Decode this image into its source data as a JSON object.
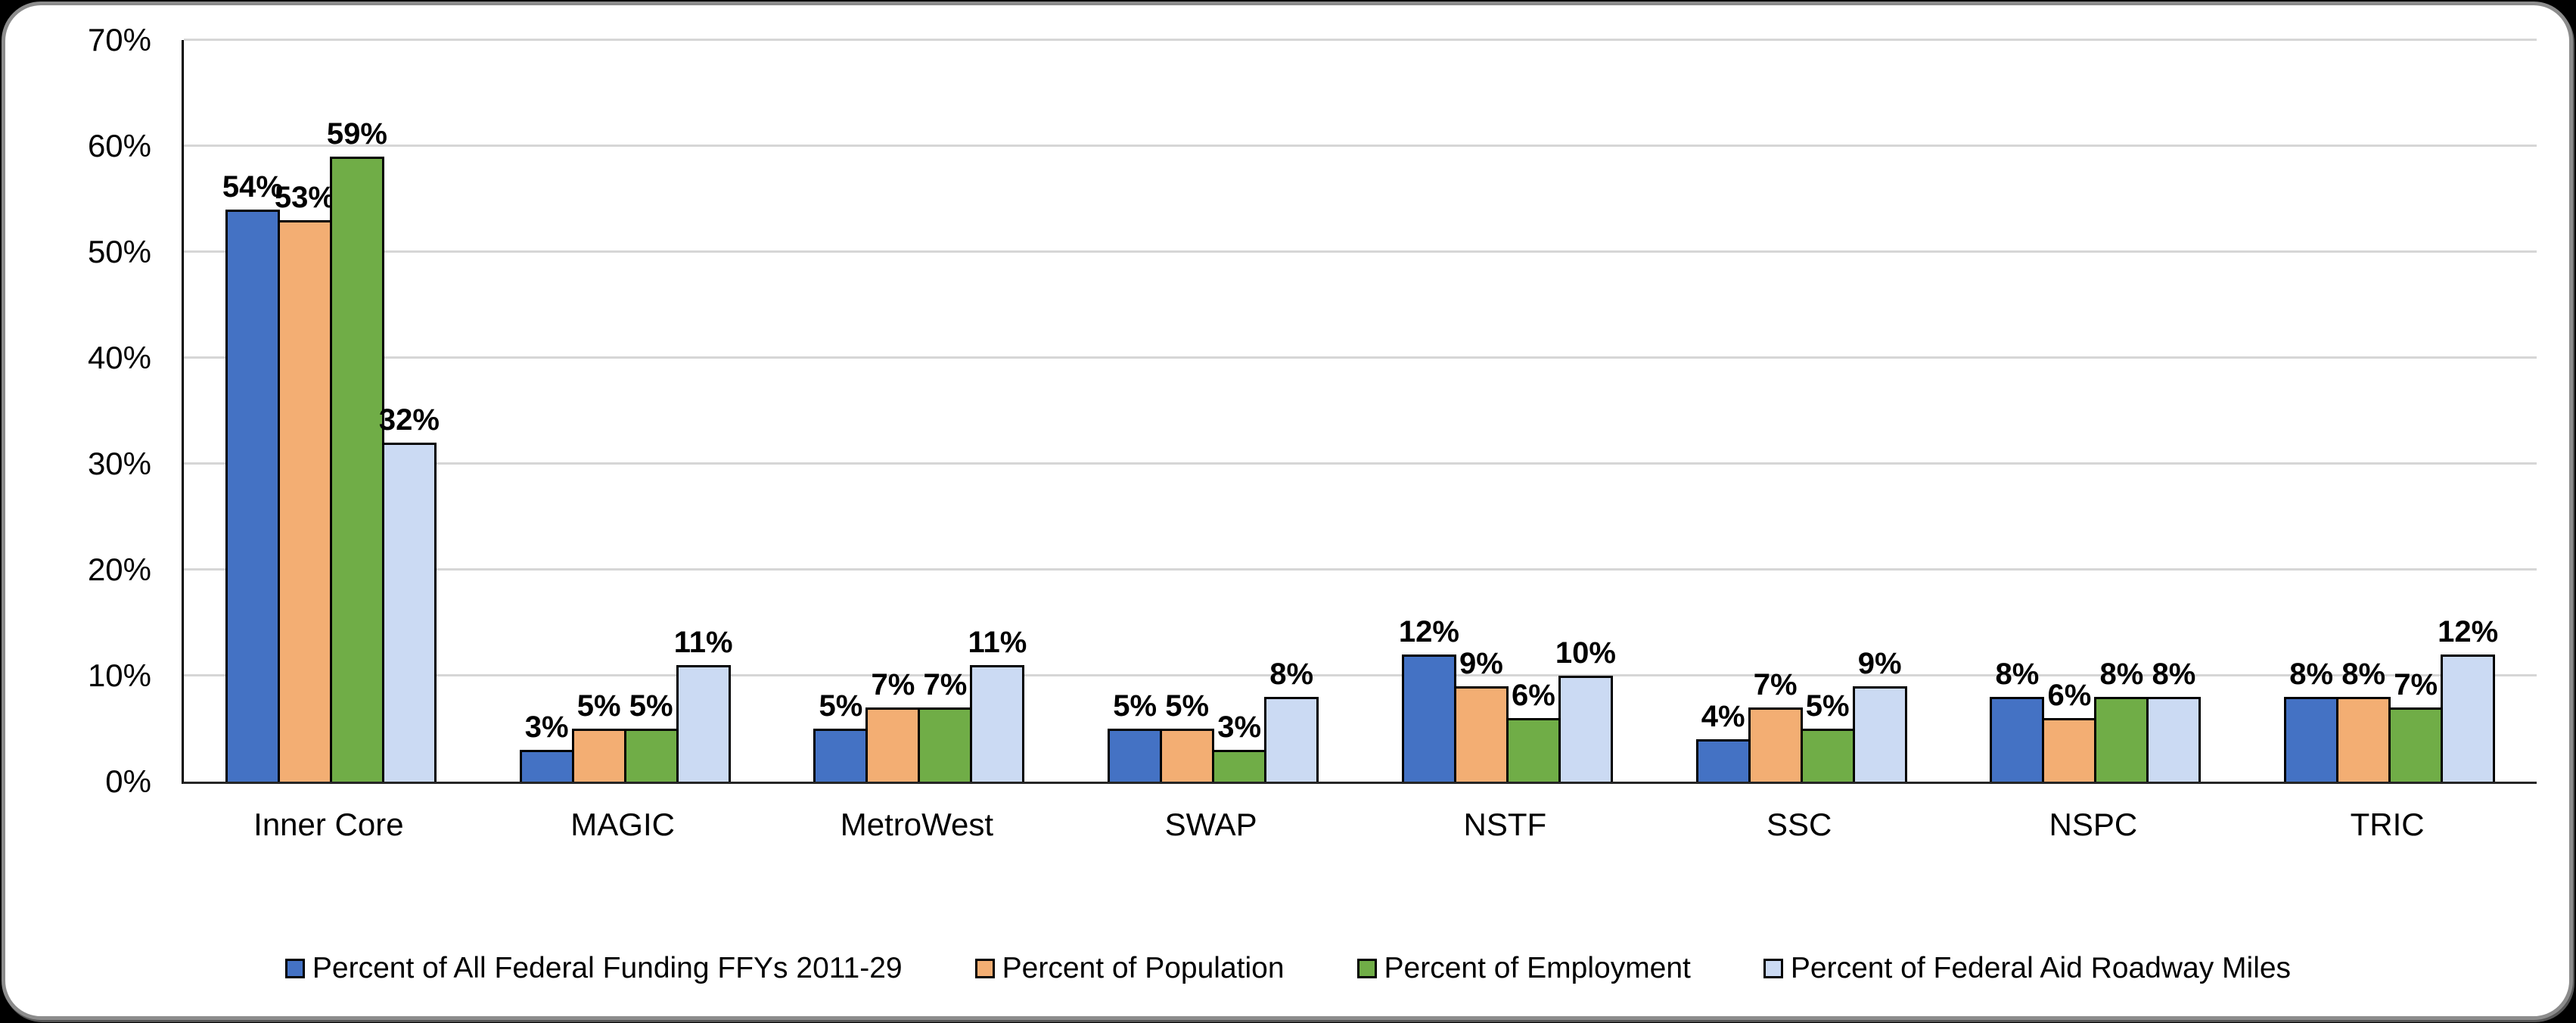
{
  "chart_data": {
    "type": "bar",
    "categories": [
      "Inner Core",
      "MAGIC",
      "MetroWest",
      "SWAP",
      "NSTF",
      "SSC",
      "NSPC",
      "TRIC"
    ],
    "series": [
      {
        "name": "Percent of All Federal Funding FFYs 2011-29",
        "color": "#4472C4",
        "values": [
          54,
          3,
          5,
          5,
          12,
          4,
          8,
          8
        ]
      },
      {
        "name": "Percent of Population",
        "color": "#F3AE73",
        "values": [
          53,
          5,
          7,
          5,
          9,
          7,
          6,
          8
        ]
      },
      {
        "name": "Percent of Employment",
        "color": "#70AD47",
        "values": [
          59,
          5,
          7,
          3,
          6,
          5,
          8,
          7
        ]
      },
      {
        "name": "Percent of Federal Aid Roadway Miles",
        "color": "#CBDAF3",
        "values": [
          32,
          11,
          11,
          8,
          10,
          9,
          8,
          12
        ]
      }
    ],
    "title": "",
    "xlabel": "",
    "ylabel": "",
    "ylim": [
      0,
      70
    ],
    "ytick_step": 10,
    "ytick_labels": [
      "0%",
      "10%",
      "20%",
      "30%",
      "40%",
      "50%",
      "60%",
      "70%"
    ],
    "data_label_suffix": "%",
    "grid": true,
    "legend_position": "bottom"
  }
}
